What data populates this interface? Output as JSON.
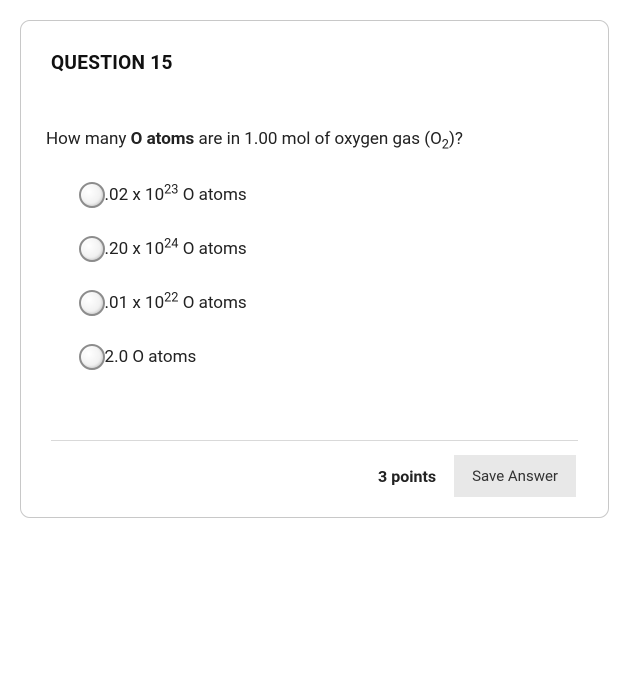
{
  "question": {
    "title": "QUESTION 15",
    "prompt_pre": "How many ",
    "prompt_bold": "O atoms",
    "prompt_mid": " are in 1.00 mol of oxygen gas (O",
    "prompt_sub": "2",
    "prompt_post": ")?"
  },
  "options": [
    {
      "coef": "6.02",
      "base": " x 10",
      "exp": "23",
      "rest": " O atoms"
    },
    {
      "coef": "1.20",
      "base": " x 10",
      "exp": "24",
      "rest": " O atoms"
    },
    {
      "coef": "3.01",
      "base": " x 10",
      "exp": "22",
      "rest": " O atoms"
    },
    {
      "coef": "32.0",
      "base": "",
      "exp": "",
      "rest": " O atoms"
    }
  ],
  "footer": {
    "points": "3 points",
    "save_label": "Save Answer"
  },
  "colors": {
    "card_border": "#c8c8c8",
    "text": "#222222",
    "radio_border": "#8c8c8c",
    "divider": "#d9d9d9",
    "button_bg": "#e8e8e8",
    "background": "#ffffff"
  }
}
